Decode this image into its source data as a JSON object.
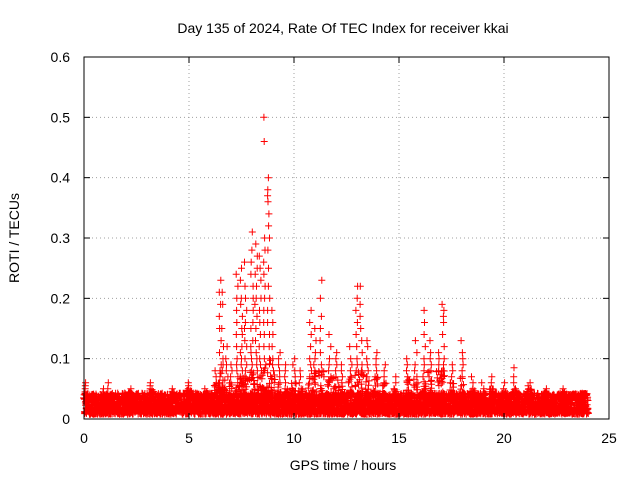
{
  "chart_data": {
    "type": "scatter",
    "title": "Day 135 of 2024, Rate Of TEC Index for receiver kkai",
    "xlabel": "GPS time / hours",
    "ylabel": "ROTI / TECUs",
    "xlim": [
      0,
      25
    ],
    "ylim": [
      0,
      0.6
    ],
    "x_ticks": [
      0,
      5,
      10,
      15,
      20,
      25
    ],
    "x_tick_labels": [
      "0",
      "5",
      "10",
      "15",
      "20",
      "25"
    ],
    "y_ticks": [
      0,
      0.1,
      0.2,
      0.3,
      0.4,
      0.5,
      0.6
    ],
    "y_tick_labels": [
      "0",
      "0.1",
      "0.2",
      "0.3",
      "0.4",
      "0.5",
      "0.6"
    ],
    "grid": true,
    "marker": "+",
    "color": "#ff0000",
    "series": [
      {
        "name": "ROTI",
        "baseline_band": [
          0.0,
          0.035
        ],
        "x_range": [
          0,
          24
        ],
        "bursts": [
          {
            "x": 0.1,
            "y": [
              0.06,
              0.055,
              0.05,
              0.045,
              0.04,
              0.035
            ]
          },
          {
            "x": 0.9,
            "y": [
              0.05,
              0.045,
              0.04
            ]
          },
          {
            "x": 1.1,
            "y": [
              0.06,
              0.05,
              0.04
            ]
          },
          {
            "x": 2.2,
            "y": [
              0.05,
              0.045
            ]
          },
          {
            "x": 3.2,
            "y": [
              0.06,
              0.055,
              0.05
            ]
          },
          {
            "x": 4.2,
            "y": [
              0.05,
              0.045
            ]
          },
          {
            "x": 5.0,
            "y": [
              0.06,
              0.055,
              0.05
            ]
          },
          {
            "x": 5.8,
            "y": [
              0.05,
              0.045
            ]
          },
          {
            "x": 6.3,
            "y": [
              0.08,
              0.07,
              0.06
            ]
          },
          {
            "x": 6.5,
            "y": [
              0.23,
              0.21,
              0.19,
              0.17,
              0.15,
              0.13,
              0.11,
              0.09,
              0.08,
              0.07,
              0.06
            ]
          },
          {
            "x": 6.6,
            "y": [
              0.21,
              0.19,
              0.15,
              0.12,
              0.1,
              0.09,
              0.08
            ]
          },
          {
            "x": 6.8,
            "y": [
              0.12,
              0.1,
              0.09,
              0.08,
              0.07
            ]
          },
          {
            "x": 7.0,
            "y": [
              0.09,
              0.08,
              0.07,
              0.06
            ]
          },
          {
            "x": 7.3,
            "y": [
              0.24,
              0.22,
              0.2,
              0.18,
              0.16,
              0.14,
              0.12,
              0.1,
              0.09,
              0.08,
              0.07,
              0.06
            ]
          },
          {
            "x": 7.5,
            "y": [
              0.25,
              0.23,
              0.2,
              0.19,
              0.17,
              0.15,
              0.14,
              0.12,
              0.11,
              0.1,
              0.09,
              0.08,
              0.07
            ]
          },
          {
            "x": 7.7,
            "y": [
              0.26,
              0.22,
              0.2,
              0.18,
              0.16,
              0.15,
              0.13,
              0.12,
              0.1,
              0.09,
              0.08,
              0.07
            ]
          },
          {
            "x": 8.0,
            "y": [
              0.31,
              0.28,
              0.26,
              0.24,
              0.22,
              0.2,
              0.18,
              0.16,
              0.15,
              0.13,
              0.12,
              0.11,
              0.1,
              0.09,
              0.08
            ]
          },
          {
            "x": 8.2,
            "y": [
              0.29,
              0.27,
              0.25,
              0.24,
              0.22,
              0.2,
              0.19,
              0.17,
              0.15,
              0.13,
              0.11,
              0.1,
              0.09,
              0.08
            ]
          },
          {
            "x": 8.4,
            "y": [
              0.27,
              0.25,
              0.23,
              0.2,
              0.18,
              0.16,
              0.14,
              0.12,
              0.1,
              0.09,
              0.08,
              0.07
            ]
          },
          {
            "x": 8.6,
            "y": [
              0.5,
              0.46,
              0.3,
              0.28,
              0.26,
              0.24,
              0.22,
              0.2,
              0.18,
              0.16,
              0.14,
              0.12,
              0.1,
              0.09
            ]
          },
          {
            "x": 8.8,
            "y": [
              0.4,
              0.38,
              0.37,
              0.36,
              0.34,
              0.32,
              0.3,
              0.28,
              0.25,
              0.22,
              0.2,
              0.18,
              0.16,
              0.14,
              0.12,
              0.1
            ]
          },
          {
            "x": 9.0,
            "y": [
              0.18,
              0.16,
              0.14,
              0.12,
              0.1,
              0.09,
              0.08
            ]
          },
          {
            "x": 9.3,
            "y": [
              0.11,
              0.1,
              0.09,
              0.08,
              0.07,
              0.06
            ]
          },
          {
            "x": 9.6,
            "y": [
              0.09,
              0.08,
              0.07,
              0.06,
              0.05
            ]
          },
          {
            "x": 10.0,
            "y": [
              0.1,
              0.09,
              0.08,
              0.07,
              0.06
            ]
          },
          {
            "x": 10.3,
            "y": [
              0.08,
              0.07,
              0.06,
              0.05
            ]
          },
          {
            "x": 10.8,
            "y": [
              0.18,
              0.16,
              0.14,
              0.12,
              0.1,
              0.09,
              0.08,
              0.07
            ]
          },
          {
            "x": 11.0,
            "y": [
              0.15,
              0.13,
              0.11,
              0.1,
              0.09,
              0.08
            ]
          },
          {
            "x": 11.3,
            "y": [
              0.23,
              0.2,
              0.17,
              0.15,
              0.13,
              0.11,
              0.09,
              0.08
            ]
          },
          {
            "x": 11.7,
            "y": [
              0.14,
              0.12,
              0.1,
              0.09,
              0.08,
              0.07
            ]
          },
          {
            "x": 12.0,
            "y": [
              0.11,
              0.1,
              0.09,
              0.08,
              0.07
            ]
          },
          {
            "x": 12.3,
            "y": [
              0.09,
              0.08,
              0.07,
              0.06
            ]
          },
          {
            "x": 12.7,
            "y": [
              0.12,
              0.1,
              0.09,
              0.08,
              0.07
            ]
          },
          {
            "x": 13.0,
            "y": [
              0.22,
              0.2,
              0.18,
              0.16,
              0.14,
              0.12,
              0.1,
              0.09,
              0.08
            ]
          },
          {
            "x": 13.2,
            "y": [
              0.22,
              0.19,
              0.17,
              0.15,
              0.13,
              0.11,
              0.09,
              0.08
            ]
          },
          {
            "x": 13.5,
            "y": [
              0.13,
              0.12,
              0.1,
              0.09,
              0.08,
              0.07
            ]
          },
          {
            "x": 13.9,
            "y": [
              0.11,
              0.1,
              0.09,
              0.08,
              0.07
            ]
          },
          {
            "x": 14.3,
            "y": [
              0.09,
              0.08,
              0.07,
              0.06
            ]
          },
          {
            "x": 14.8,
            "y": [
              0.07,
              0.06,
              0.05
            ]
          },
          {
            "x": 15.4,
            "y": [
              0.1,
              0.09,
              0.08,
              0.07
            ]
          },
          {
            "x": 15.8,
            "y": [
              0.13,
              0.11,
              0.09,
              0.08,
              0.07
            ]
          },
          {
            "x": 16.2,
            "y": [
              0.18,
              0.16,
              0.14,
              0.12,
              0.1,
              0.09,
              0.08,
              0.07
            ]
          },
          {
            "x": 16.5,
            "y": [
              0.13,
              0.11,
              0.1,
              0.09,
              0.08
            ]
          },
          {
            "x": 16.9,
            "y": [
              0.11,
              0.1,
              0.09,
              0.08
            ]
          },
          {
            "x": 17.1,
            "y": [
              0.19,
              0.18,
              0.17,
              0.16,
              0.14,
              0.12,
              0.1,
              0.09,
              0.08
            ]
          },
          {
            "x": 17.5,
            "y": [
              0.09,
              0.08,
              0.07,
              0.06
            ]
          },
          {
            "x": 18.0,
            "y": [
              0.13,
              0.11,
              0.1,
              0.09,
              0.08,
              0.07
            ]
          },
          {
            "x": 18.5,
            "y": [
              0.07,
              0.06,
              0.05
            ]
          },
          {
            "x": 19.0,
            "y": [
              0.06,
              0.05,
              0.045
            ]
          },
          {
            "x": 19.4,
            "y": [
              0.07,
              0.06,
              0.05
            ]
          },
          {
            "x": 20.0,
            "y": [
              0.06,
              0.05,
              0.045
            ]
          },
          {
            "x": 20.5,
            "y": [
              0.085,
              0.07,
              0.06,
              0.05
            ]
          },
          {
            "x": 21.2,
            "y": [
              0.06,
              0.055,
              0.05
            ]
          },
          {
            "x": 22.0,
            "y": [
              0.05,
              0.045
            ]
          },
          {
            "x": 22.8,
            "y": [
              0.05,
              0.045
            ]
          },
          {
            "x": 23.5,
            "y": [
              0.04,
              0.035
            ]
          }
        ]
      }
    ]
  }
}
